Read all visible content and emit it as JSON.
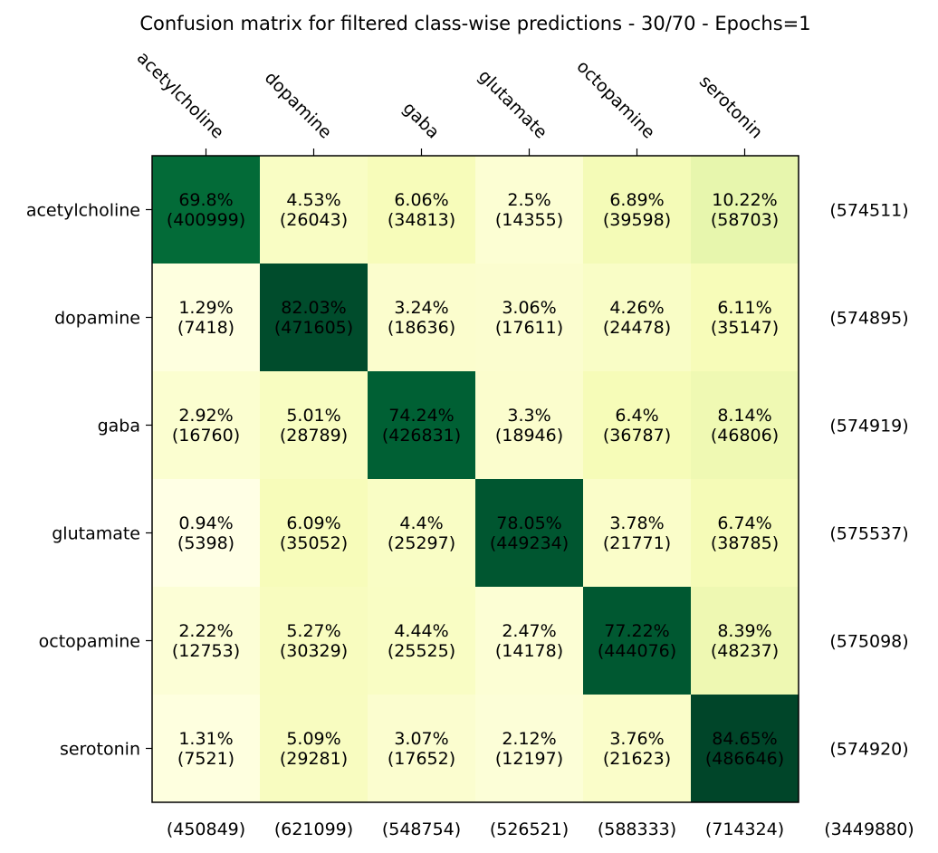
{
  "chart_data": {
    "type": "heatmap",
    "title": "Confusion matrix for filtered class-wise predictions - 30/70 - Epochs=1",
    "xlabel": "",
    "ylabel": "",
    "colormap": "Greens (light yellow to dark green)",
    "x_axis_position": "top",
    "x_tick_rotation": "-45 degrees",
    "grid": false,
    "categories": [
      "acetylcholine",
      "dopamine",
      "gaba",
      "glutamate",
      "octopamine",
      "serotonin"
    ],
    "percent": [
      [
        "69.8%",
        "4.53%",
        "6.06%",
        "2.5%",
        "6.89%",
        "10.22%"
      ],
      [
        "1.29%",
        "82.03%",
        "3.24%",
        "3.06%",
        "4.26%",
        "6.11%"
      ],
      [
        "2.92%",
        "5.01%",
        "74.24%",
        "3.3%",
        "6.4%",
        "8.14%"
      ],
      [
        "0.94%",
        "6.09%",
        "4.4%",
        "78.05%",
        "3.78%",
        "6.74%"
      ],
      [
        "2.22%",
        "5.27%",
        "4.44%",
        "2.47%",
        "77.22%",
        "8.39%"
      ],
      [
        "1.31%",
        "5.09%",
        "3.07%",
        "2.12%",
        "3.76%",
        "84.65%"
      ]
    ],
    "counts": [
      [
        400999,
        26043,
        34813,
        14355,
        39598,
        58703
      ],
      [
        7418,
        471605,
        18636,
        17611,
        24478,
        35147
      ],
      [
        16760,
        28789,
        426831,
        18946,
        36787,
        46806
      ],
      [
        5398,
        35052,
        25297,
        449234,
        21771,
        38785
      ],
      [
        12753,
        30329,
        25525,
        14178,
        444076,
        48237
      ],
      [
        7521,
        29281,
        17652,
        12197,
        21623,
        486646
      ]
    ],
    "row_totals": [
      "(574511)",
      "(574895)",
      "(574919)",
      "(575537)",
      "(575098)",
      "(574920)"
    ],
    "column_totals": [
      "(450849)",
      "(621099)",
      "(548754)",
      "(526521)",
      "(588333)",
      "(714324)"
    ],
    "grand_total": "(3449880)"
  }
}
